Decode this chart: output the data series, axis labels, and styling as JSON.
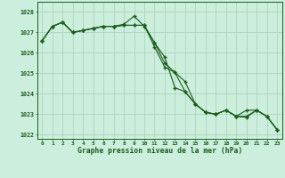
{
  "title": "Graphe pression niveau de la mer (hPa)",
  "bg_color": "#cceedd",
  "grid_color": "#aaccbb",
  "line_color": "#1a5c1a",
  "x_labels": [
    "0",
    "1",
    "2",
    "3",
    "4",
    "5",
    "6",
    "7",
    "8",
    "9",
    "10",
    "11",
    "12",
    "13",
    "14",
    "15",
    "16",
    "17",
    "18",
    "19",
    "20",
    "21",
    "22",
    "23"
  ],
  "ylim": [
    1021.8,
    1028.5
  ],
  "yticks": [
    1022,
    1023,
    1024,
    1025,
    1026,
    1027,
    1028
  ],
  "series1": [
    1026.6,
    1027.3,
    1027.5,
    1027.0,
    1027.1,
    1027.2,
    1027.3,
    1027.3,
    1027.35,
    1027.35,
    1027.35,
    1026.3,
    1025.3,
    1025.05,
    1024.6,
    1023.5,
    1023.1,
    1023.0,
    1023.2,
    1022.9,
    1022.85,
    1023.2,
    1022.9,
    1022.25
  ],
  "series2": [
    1026.6,
    1027.3,
    1027.5,
    1027.0,
    1027.1,
    1027.2,
    1027.3,
    1027.3,
    1027.4,
    1027.8,
    1027.3,
    1026.5,
    1025.8,
    1024.3,
    1024.1,
    1023.5,
    1023.1,
    1023.0,
    1023.2,
    1022.9,
    1023.2,
    1023.2,
    1022.9,
    1022.25
  ],
  "series3": [
    1026.6,
    1027.3,
    1027.5,
    1027.0,
    1027.1,
    1027.2,
    1027.3,
    1027.3,
    1027.35,
    1027.35,
    1027.35,
    1026.5,
    1025.5,
    1025.05,
    1024.1,
    1023.5,
    1023.1,
    1023.0,
    1023.2,
    1022.9,
    1022.9,
    1023.2,
    1022.9,
    1022.25
  ]
}
